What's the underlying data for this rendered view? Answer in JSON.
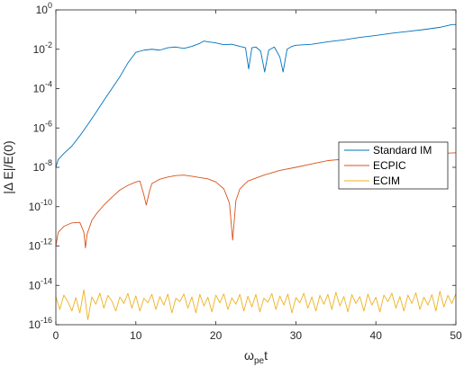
{
  "chart_data": {
    "type": "line",
    "xlabel": "ω",
    "xlabel_sub": "pe",
    "xlabel_suffix": "t",
    "ylabel": "|Δ E|/E(0)",
    "xlim": [
      0,
      50
    ],
    "ylim": [
      1e-16,
      1
    ],
    "yscale": "log",
    "grid": false,
    "legend_position": "right",
    "x_ticks": [
      0,
      10,
      20,
      30,
      40,
      50
    ],
    "x_tick_labels": [
      "0",
      "10",
      "20",
      "30",
      "40",
      "50"
    ],
    "y_ticks": [
      {
        "exp": 0,
        "base": "10",
        "sup": "0"
      },
      {
        "exp": -2,
        "base": "10",
        "sup": "-2"
      },
      {
        "exp": -4,
        "base": "10",
        "sup": "-4"
      },
      {
        "exp": -6,
        "base": "10",
        "sup": "-6"
      },
      {
        "exp": -8,
        "base": "10",
        "sup": "-8"
      },
      {
        "exp": -10,
        "base": "10",
        "sup": "-10"
      },
      {
        "exp": -12,
        "base": "10",
        "sup": "-12"
      },
      {
        "exp": -14,
        "base": "10",
        "sup": "-14"
      },
      {
        "exp": -16,
        "base": "10",
        "sup": "-16"
      }
    ],
    "series": [
      {
        "name": "Standard IM",
        "color": "#0072BD",
        "points": [
          [
            0,
            1e-08
          ],
          [
            0.3,
            2.5e-08
          ],
          [
            1,
            5e-08
          ],
          [
            2,
            1.2e-07
          ],
          [
            3,
            4e-07
          ],
          [
            4,
            1.5e-06
          ],
          [
            5,
            6e-06
          ],
          [
            6,
            2.5e-05
          ],
          [
            7,
            0.0001
          ],
          [
            8,
            0.0004
          ],
          [
            9,
            0.002
          ],
          [
            10,
            0.007
          ],
          [
            11,
            0.009
          ],
          [
            12,
            0.01
          ],
          [
            13,
            0.009
          ],
          [
            14,
            0.012
          ],
          [
            15,
            0.013
          ],
          [
            16,
            0.011
          ],
          [
            17,
            0.014
          ],
          [
            18,
            0.02
          ],
          [
            18.5,
            0.026
          ],
          [
            19,
            0.024
          ],
          [
            20,
            0.021
          ],
          [
            21,
            0.017
          ],
          [
            22,
            0.018
          ],
          [
            23,
            0.014
          ],
          [
            23.7,
            0.012
          ],
          [
            24.1,
            0.001
          ],
          [
            24.5,
            0.012
          ],
          [
            25,
            0.013
          ],
          [
            25.6,
            0.008
          ],
          [
            26.1,
            0.0007
          ],
          [
            26.6,
            0.009
          ],
          [
            27.3,
            0.013
          ],
          [
            28,
            0.004
          ],
          [
            28.4,
            0.0007
          ],
          [
            28.9,
            0.01
          ],
          [
            29.5,
            0.014
          ],
          [
            30,
            0.016
          ],
          [
            32,
            0.018
          ],
          [
            34,
            0.024
          ],
          [
            36,
            0.03
          ],
          [
            38,
            0.04
          ],
          [
            40,
            0.05
          ],
          [
            42,
            0.065
          ],
          [
            44,
            0.08
          ],
          [
            46,
            0.1
          ],
          [
            48,
            0.13
          ],
          [
            49.5,
            0.18
          ],
          [
            50,
            0.18
          ]
        ]
      },
      {
        "name": "ECPIC",
        "color": "#D95319",
        "points": [
          [
            0,
            1e-12
          ],
          [
            0.3,
            5e-12
          ],
          [
            1,
            1e-11
          ],
          [
            2,
            1.5e-11
          ],
          [
            3,
            1.6e-11
          ],
          [
            3.5,
            5e-12
          ],
          [
            3.7,
            8e-13
          ],
          [
            3.9,
            4e-12
          ],
          [
            4.5,
            2e-11
          ],
          [
            5,
            4e-11
          ],
          [
            6,
            1.2e-10
          ],
          [
            7,
            3e-10
          ],
          [
            8,
            7e-10
          ],
          [
            9,
            1.2e-09
          ],
          [
            10,
            1.8e-09
          ],
          [
            10.5,
            2e-09
          ],
          [
            11,
            4e-10
          ],
          [
            11.3,
            1.2e-10
          ],
          [
            11.7,
            6e-10
          ],
          [
            12,
            1.5e-09
          ],
          [
            13,
            2.5e-09
          ],
          [
            14,
            3.2e-09
          ],
          [
            15,
            3.8e-09
          ],
          [
            16,
            4e-09
          ],
          [
            17,
            3.5e-09
          ],
          [
            18,
            3e-09
          ],
          [
            19,
            2.6e-09
          ],
          [
            20,
            1.8e-09
          ],
          [
            21,
            8e-10
          ],
          [
            21.7,
            1.5e-10
          ],
          [
            22.1,
            2e-12
          ],
          [
            22.5,
            2e-10
          ],
          [
            23,
            8e-10
          ],
          [
            24,
            2e-09
          ],
          [
            26,
            4e-09
          ],
          [
            28,
            7e-09
          ],
          [
            30,
            1e-08
          ],
          [
            32,
            1.5e-08
          ],
          [
            34,
            2.2e-08
          ],
          [
            36,
            2.6e-08
          ],
          [
            38,
            3e-08
          ],
          [
            40,
            3.3e-08
          ],
          [
            42,
            3.8e-08
          ],
          [
            44,
            4e-08
          ],
          [
            46,
            4.5e-08
          ],
          [
            48,
            5e-08
          ],
          [
            50,
            5.5e-08
          ]
        ]
      },
      {
        "name": "ECIM",
        "color": "#EDB120",
        "points": [
          [
            0,
            2.6e-15
          ],
          [
            0.5,
            6e-16
          ],
          [
            1,
            3.2e-15
          ],
          [
            1.5,
            1.5e-15
          ],
          [
            2,
            5e-16
          ],
          [
            2.5,
            2.4e-15
          ],
          [
            3,
            4e-16
          ],
          [
            3.5,
            6e-15
          ],
          [
            4,
            1.8e-16
          ],
          [
            4.5,
            2.6e-15
          ],
          [
            5,
            1.1e-15
          ],
          [
            5.5,
            4e-15
          ],
          [
            6,
            7e-16
          ],
          [
            6.5,
            3.1e-15
          ],
          [
            7,
            1.6e-15
          ],
          [
            7.5,
            5e-16
          ],
          [
            8,
            2.6e-15
          ],
          [
            8.5,
            1.2e-15
          ],
          [
            9,
            3.9e-15
          ],
          [
            9.5,
            7e-16
          ],
          [
            10,
            2.9e-15
          ],
          [
            10.5,
            5e-16
          ],
          [
            11,
            2.2e-15
          ],
          [
            11.5,
            1.3e-15
          ],
          [
            12,
            3.5e-15
          ],
          [
            12.5,
            6e-16
          ],
          [
            13,
            2.7e-15
          ],
          [
            13.5,
            1e-15
          ],
          [
            14,
            3.6e-15
          ],
          [
            14.5,
            4e-16
          ],
          [
            15,
            2.2e-15
          ],
          [
            15.5,
            1.5e-15
          ],
          [
            16,
            3.7e-15
          ],
          [
            16.5,
            7e-16
          ],
          [
            17,
            2.6e-15
          ],
          [
            17.5,
            4e-16
          ],
          [
            18,
            3.5e-15
          ],
          [
            18.5,
            9e-16
          ],
          [
            19,
            2.5e-15
          ],
          [
            19.5,
            4.5e-16
          ],
          [
            20,
            3.2e-15
          ],
          [
            20.5,
            1.3e-15
          ],
          [
            21,
            3.7e-15
          ],
          [
            21.5,
            6e-16
          ],
          [
            22,
            2.3e-15
          ],
          [
            22.5,
            1.1e-15
          ],
          [
            23,
            3.5e-15
          ],
          [
            23.5,
            5e-16
          ],
          [
            24,
            2.8e-15
          ],
          [
            24.5,
            8e-16
          ],
          [
            25,
            3.5e-15
          ],
          [
            25.5,
            4.5e-16
          ],
          [
            26,
            2.2e-15
          ],
          [
            26.5,
            1.4e-15
          ],
          [
            27,
            3.8e-15
          ],
          [
            27.5,
            6e-16
          ],
          [
            28,
            2.9e-15
          ],
          [
            28.5,
            1e-15
          ],
          [
            29,
            3.6e-15
          ],
          [
            29.5,
            4e-16
          ],
          [
            30,
            2.4e-15
          ],
          [
            30.5,
            1.3e-15
          ],
          [
            31,
            4e-15
          ],
          [
            31.5,
            7e-16
          ],
          [
            32,
            2.6e-15
          ],
          [
            32.5,
            5e-16
          ],
          [
            33,
            3.1e-15
          ],
          [
            33.5,
            1.1e-15
          ],
          [
            34,
            3.5e-15
          ],
          [
            34.5,
            6e-16
          ],
          [
            35,
            4.5e-15
          ],
          [
            35.5,
            9e-16
          ],
          [
            36,
            2.7e-15
          ],
          [
            36.5,
            4.5e-16
          ],
          [
            37,
            3.4e-15
          ],
          [
            37.5,
            1.2e-15
          ],
          [
            38,
            2.7e-15
          ],
          [
            38.5,
            5e-16
          ],
          [
            39,
            3.6e-15
          ],
          [
            39.5,
            1e-15
          ],
          [
            40,
            2.5e-15
          ],
          [
            40.5,
            4.5e-16
          ],
          [
            41,
            3.2e-15
          ],
          [
            41.5,
            1.5e-15
          ],
          [
            42,
            4e-15
          ],
          [
            42.5,
            7e-16
          ],
          [
            43,
            2.7e-15
          ],
          [
            43.5,
            5e-16
          ],
          [
            44,
            3.2e-15
          ],
          [
            44.5,
            1.2e-15
          ],
          [
            45,
            4.2e-15
          ],
          [
            45.5,
            6e-16
          ],
          [
            46,
            2.5e-15
          ],
          [
            46.5,
            1e-15
          ],
          [
            47,
            3.4e-15
          ],
          [
            47.5,
            5e-16
          ],
          [
            48,
            5e-15
          ],
          [
            48.5,
            8e-16
          ],
          [
            49,
            3.1e-15
          ],
          [
            49.5,
            1.2e-15
          ],
          [
            50,
            3.8e-15
          ]
        ]
      }
    ]
  }
}
